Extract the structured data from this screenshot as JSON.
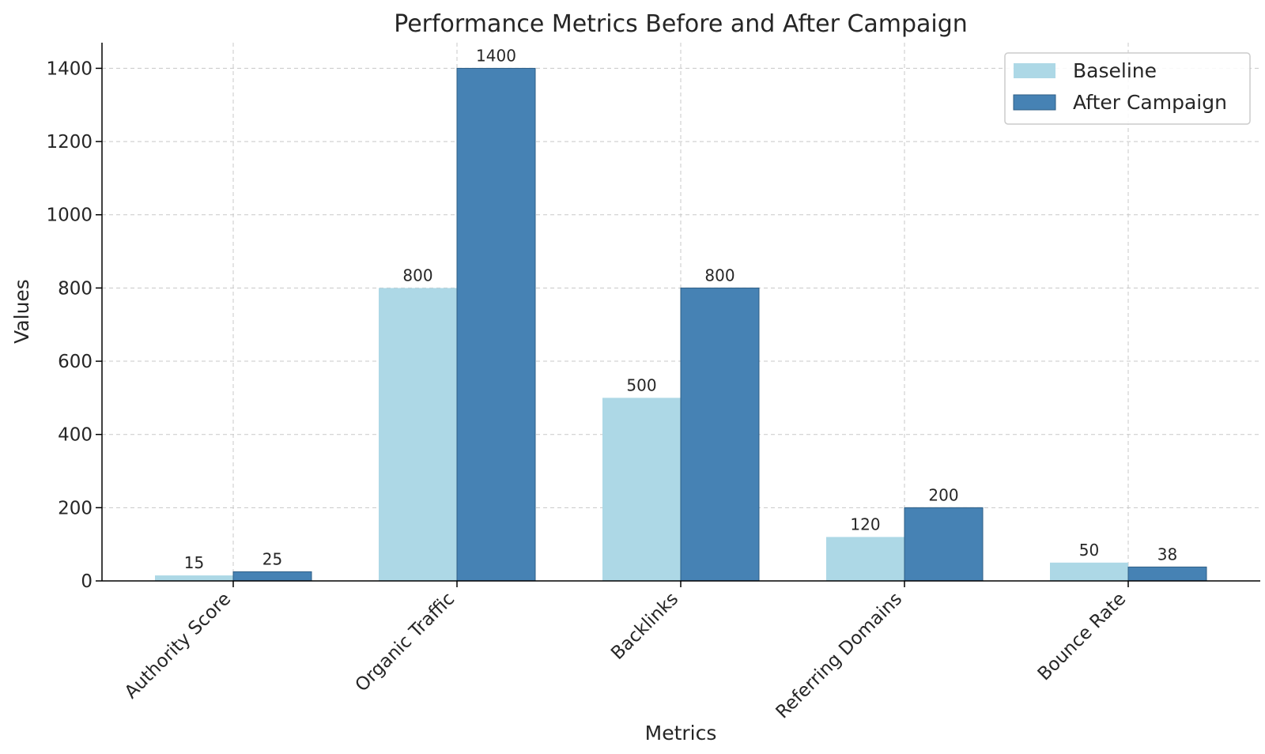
{
  "chart_data": {
    "type": "bar",
    "title": "Performance Metrics Before and After Campaign",
    "xlabel": "Metrics",
    "ylabel": "Values",
    "categories": [
      "Authority Score",
      "Organic Traffic",
      "Backlinks",
      "Referring Domains",
      "Bounce Rate"
    ],
    "series": [
      {
        "name": "Baseline",
        "values": [
          15,
          800,
          500,
          120,
          50
        ],
        "color": "#add8e6"
      },
      {
        "name": "After Campaign",
        "values": [
          25,
          1400,
          800,
          200,
          38
        ],
        "color": "#4682b4"
      }
    ],
    "ylim": [
      0,
      1470
    ],
    "yticks": [
      0,
      200,
      400,
      600,
      800,
      1000,
      1200,
      1400
    ],
    "grid": true,
    "legend_position": "top-right"
  }
}
